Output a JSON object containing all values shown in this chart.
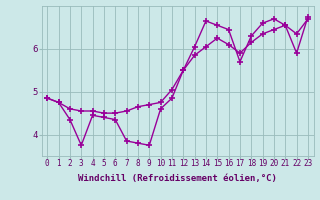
{
  "xlabel": "Windchill (Refroidissement éolien,°C)",
  "bg_color": "#cce8e8",
  "line_color": "#990099",
  "grid_color": "#99bbbb",
  "axis_color": "#660066",
  "line1_x": [
    0,
    1,
    2,
    3,
    4,
    5,
    6,
    7,
    8,
    9,
    10,
    11,
    12,
    13,
    14,
    15,
    16,
    17,
    18,
    19,
    20,
    21,
    22,
    23
  ],
  "line1_y": [
    4.85,
    4.75,
    4.6,
    4.55,
    4.55,
    4.5,
    4.5,
    4.55,
    4.65,
    4.7,
    4.75,
    5.05,
    5.5,
    5.85,
    6.05,
    6.25,
    6.1,
    5.9,
    6.15,
    6.35,
    6.45,
    6.55,
    6.35,
    6.7
  ],
  "line2_x": [
    0,
    1,
    2,
    3,
    4,
    5,
    6,
    7,
    8,
    9,
    10,
    11,
    12,
    13,
    14,
    15,
    16,
    17,
    18,
    19,
    20,
    21,
    22,
    23
  ],
  "line2_y": [
    4.85,
    4.75,
    4.35,
    3.75,
    4.45,
    4.4,
    4.35,
    3.85,
    3.8,
    3.75,
    4.6,
    4.85,
    5.5,
    6.05,
    6.65,
    6.55,
    6.45,
    5.7,
    6.3,
    6.6,
    6.7,
    6.55,
    5.9,
    6.75
  ],
  "xlim": [
    -0.5,
    23.5
  ],
  "ylim": [
    3.5,
    7.0
  ],
  "yticks": [
    4,
    5,
    6
  ],
  "xtick_labels": [
    "0",
    "1",
    "2",
    "3",
    "4",
    "5",
    "6",
    "7",
    "8",
    "9",
    "10",
    "11",
    "12",
    "13",
    "14",
    "15",
    "16",
    "17",
    "18",
    "19",
    "20",
    "21",
    "22",
    "23"
  ],
  "marker": "+",
  "markersize": 5,
  "linewidth": 1.0,
  "xlabel_fontsize": 6.5,
  "tick_fontsize": 5.5,
  "ytick_fontsize": 6.5
}
